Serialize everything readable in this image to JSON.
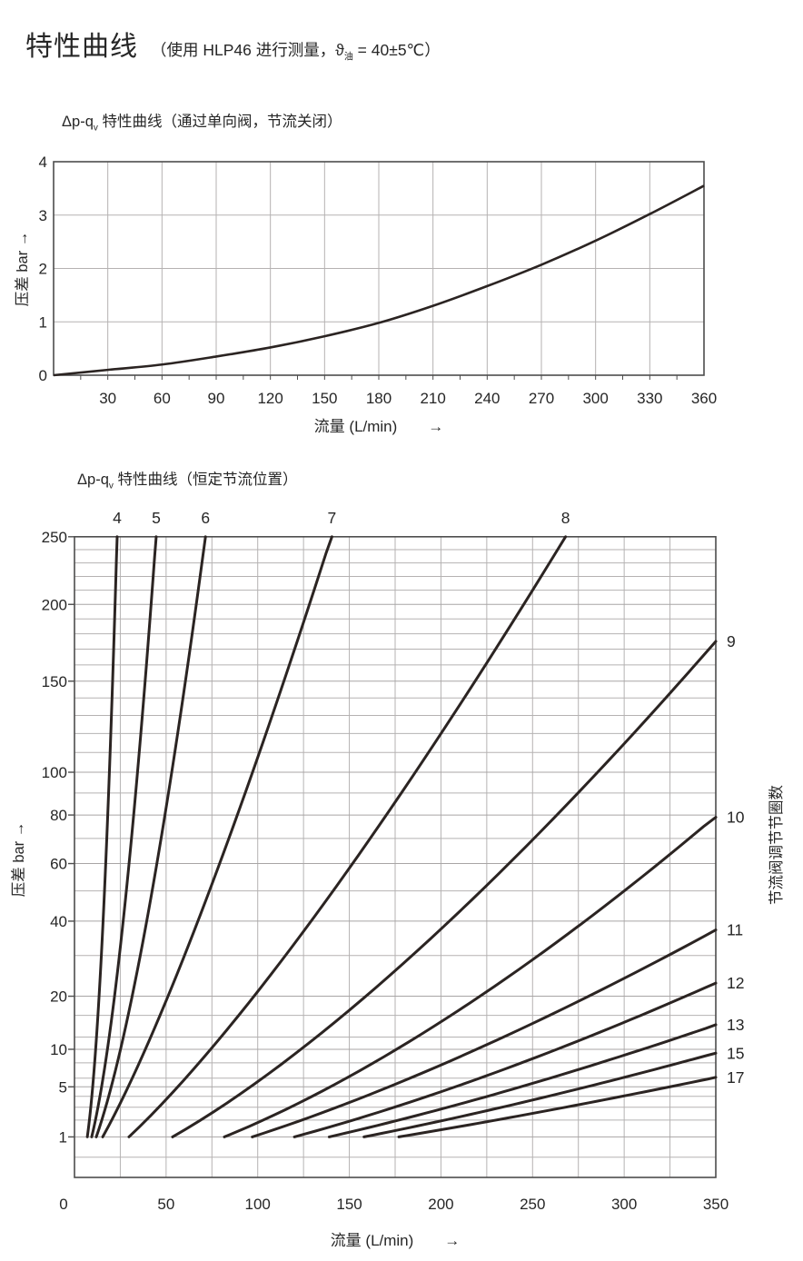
{
  "page": {
    "title": "特性曲线",
    "title_note_pre": "（使用 HLP46 进行测量，",
    "title_note_symbol": "ϑ",
    "title_note_sub": "油",
    "title_note_post": " = 40±5℃）"
  },
  "colors": {
    "curve": "#2b2422",
    "grid": "#b5b2b2",
    "border": "#4d4d4d",
    "text": "#262626",
    "background": "#ffffff"
  },
  "chart_data": [
    {
      "id": "check-valve-curve",
      "type": "line",
      "title_parts": {
        "pre": "Δp-q",
        "sub": "v",
        "post": " 特性曲线（通过单向阀，节流关闭）"
      },
      "xlabel": "流量 (L/min)",
      "xarrow": "→",
      "ylabel": "压差 bar →",
      "x_unit": "L/min",
      "y_unit": "bar",
      "xlim": [
        0,
        360
      ],
      "ylim": [
        0,
        4
      ],
      "x_ticks": [
        30,
        60,
        90,
        120,
        150,
        180,
        210,
        240,
        270,
        300,
        330,
        360
      ],
      "y_ticks": [
        0,
        1,
        2,
        3,
        4
      ],
      "grid": "on",
      "series": [
        {
          "name": "Δp",
          "x": [
            0,
            30,
            60,
            90,
            120,
            150,
            180,
            210,
            240,
            270,
            300,
            330,
            360
          ],
          "y": [
            0,
            0.1,
            0.2,
            0.35,
            0.52,
            0.73,
            0.98,
            1.3,
            1.67,
            2.07,
            2.52,
            3.02,
            3.55
          ]
        }
      ]
    },
    {
      "id": "throttle-position-curves",
      "type": "line",
      "title_parts": {
        "pre": "Δp-q",
        "sub": "v",
        "post": " 特性曲线（恒定节流位置）"
      },
      "xlabel": "流量 (L/min)",
      "xarrow": "→",
      "ylabel_left": "压差 bar →",
      "ylabel_right": "节流阀调节节圈数",
      "x_unit": "L/min",
      "y_unit": "bar",
      "xlim": [
        0,
        350
      ],
      "ylim": [
        0,
        250
      ],
      "y_scale": "sqrt",
      "x_ticks": [
        0,
        50,
        100,
        150,
        200,
        250,
        300,
        350
      ],
      "x_grid_step": 25,
      "y_ticks": [
        1,
        5,
        10,
        20,
        40,
        60,
        80,
        100,
        150,
        200,
        250
      ],
      "y_minor": [
        0.25,
        2,
        3,
        4,
        6,
        8,
        12,
        16,
        30,
        50,
        70,
        90,
        110,
        120,
        130,
        140,
        160,
        170,
        180,
        190,
        210,
        220,
        230,
        240
      ],
      "grid": "on",
      "curves": [
        {
          "label": "4",
          "exit": "top",
          "q_at_dp1": 7.0,
          "n": 4.6,
          "end": {
            "q": 23.3,
            "dp": 250
          }
        },
        {
          "label": "5",
          "exit": "top",
          "q_at_dp1": 9.4,
          "n": 3.55,
          "end": {
            "q": 44.6,
            "dp": 250
          }
        },
        {
          "label": "6",
          "exit": "top",
          "q_at_dp1": 11.9,
          "n": 3.08,
          "end": {
            "q": 71.5,
            "dp": 250
          }
        },
        {
          "label": "7",
          "exit": "top",
          "q_at_dp1": 15.4,
          "n": 2.5,
          "end": {
            "q": 140.5,
            "dp": 250
          }
        },
        {
          "label": "8",
          "exit": "top",
          "q_at_dp1": 29.7,
          "n": 2.51,
          "end": {
            "q": 268,
            "dp": 250
          }
        },
        {
          "label": "9",
          "exit": "right",
          "q_at_dp1": 53.5,
          "n": 2.75,
          "end": {
            "q": 350,
            "dp": 175
          }
        },
        {
          "label": "10",
          "exit": "right",
          "q_at_dp1": 81.8,
          "n": 3.01,
          "end": {
            "q": 350,
            "dp": 79
          }
        },
        {
          "label": "11",
          "exit": "right",
          "q_at_dp1": 97,
          "n": 2.82,
          "end": {
            "q": 350,
            "dp": 37.3
          }
        },
        {
          "label": "12",
          "exit": "right",
          "q_at_dp1": 120,
          "n": 2.93,
          "end": {
            "q": 350,
            "dp": 23
          }
        },
        {
          "label": "13",
          "exit": "right",
          "q_at_dp1": 139,
          "n": 2.87,
          "end": {
            "q": 350,
            "dp": 14.2
          }
        },
        {
          "label": "15",
          "exit": "right",
          "q_at_dp1": 158,
          "n": 2.82,
          "end": {
            "q": 350,
            "dp": 9.4
          }
        },
        {
          "label": "17",
          "exit": "right",
          "q_at_dp1": 177,
          "n": 2.65,
          "end": {
            "q": 350,
            "dp": 6.1
          }
        }
      ]
    }
  ]
}
